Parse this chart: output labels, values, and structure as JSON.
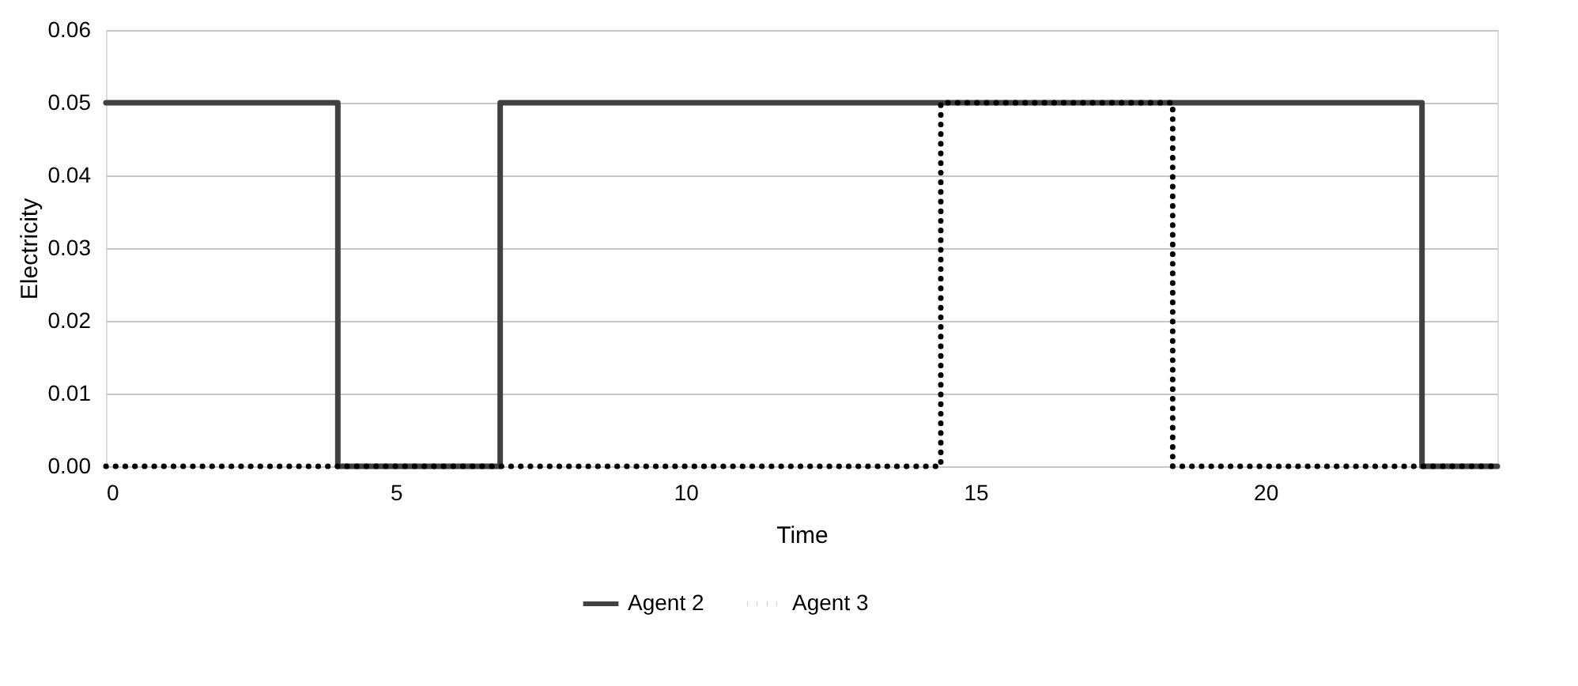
{
  "chart_data": {
    "type": "step",
    "xlabel": "Time",
    "ylabel": "Electricity",
    "xlim": [
      0,
      24
    ],
    "xticks": [
      0,
      5,
      10,
      15,
      20
    ],
    "ylim": [
      0,
      0.06
    ],
    "yticks": [
      {
        "value": 0,
        "label": "0.00"
      },
      {
        "value": 0.01,
        "label": "0.01"
      },
      {
        "value": 0.02,
        "label": "0.02"
      },
      {
        "value": 0.03,
        "label": "0.03"
      },
      {
        "value": 0.04,
        "label": "0.04"
      },
      {
        "value": 0.05,
        "label": "0.05"
      },
      {
        "value": 0.06,
        "label": "0.06"
      }
    ],
    "grid": "y",
    "legend": "bottom",
    "marker": "none",
    "series": [
      {
        "name": "Agent 2",
        "color": "#404040",
        "line_style": "solid",
        "x": [
          0,
          4,
          6.8,
          22.7,
          24
        ],
        "values": [
          0.05,
          0,
          0.05,
          0,
          0
        ]
      },
      {
        "name": "Agent 3",
        "color": "#000000",
        "line_style": "dotted",
        "x": [
          0,
          14.4,
          18.4,
          24
        ],
        "values": [
          0,
          0.05,
          0,
          0
        ]
      }
    ]
  }
}
